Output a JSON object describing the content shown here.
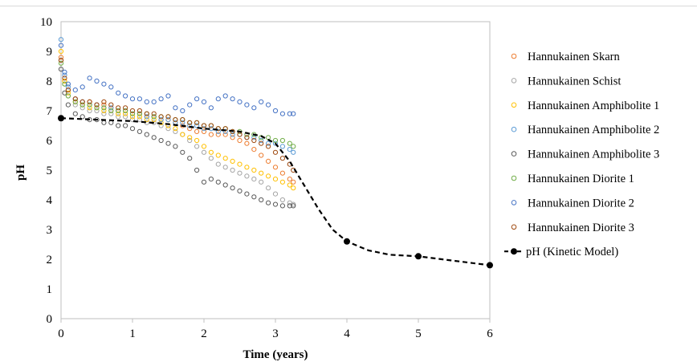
{
  "chart_data": {
    "type": "scatter",
    "title": "",
    "xlabel": "Time (years)",
    "ylabel": "pH",
    "xlim": [
      0,
      6
    ],
    "ylim": [
      0,
      10
    ],
    "x_ticks": [
      "0",
      "1",
      "2",
      "3",
      "4",
      "5",
      "6"
    ],
    "y_ticks": [
      "0",
      "1",
      "2",
      "3",
      "4",
      "5",
      "6",
      "7",
      "8",
      "9",
      "10"
    ],
    "grid": false,
    "legend_position": "right",
    "series": [
      {
        "name": "Hannukainen Skarn",
        "color": "#ed7d31",
        "marker": "open-circle",
        "x": [
          0,
          0.05,
          0.1,
          0.2,
          0.3,
          0.4,
          0.5,
          0.6,
          0.7,
          0.8,
          0.9,
          1.0,
          1.1,
          1.2,
          1.3,
          1.4,
          1.5,
          1.6,
          1.7,
          1.8,
          1.9,
          2.0,
          2.1,
          2.2,
          2.3,
          2.4,
          2.5,
          2.6,
          2.7,
          2.8,
          2.9,
          3.0,
          3.1,
          3.2,
          3.25
        ],
        "y": [
          8.8,
          8.0,
          7.7,
          7.4,
          7.3,
          7.3,
          7.2,
          7.2,
          7.1,
          7.0,
          7.0,
          6.9,
          6.9,
          6.8,
          6.8,
          6.7,
          6.7,
          6.6,
          6.5,
          6.4,
          6.3,
          6.3,
          6.2,
          6.2,
          6.2,
          6.1,
          6.0,
          5.9,
          5.7,
          5.5,
          5.3,
          5.1,
          4.9,
          4.7,
          4.6
        ]
      },
      {
        "name": "Hannukainen Schist",
        "color": "#a5a5a5",
        "marker": "open-circle",
        "x": [
          0,
          0.05,
          0.1,
          0.2,
          0.3,
          0.4,
          0.5,
          0.6,
          0.7,
          0.8,
          0.9,
          1.0,
          1.1,
          1.2,
          1.3,
          1.4,
          1.5,
          1.6,
          1.7,
          1.8,
          1.9,
          2.0,
          2.1,
          2.2,
          2.3,
          2.4,
          2.5,
          2.6,
          2.7,
          2.8,
          2.9,
          3.0,
          3.1,
          3.2,
          3.25
        ],
        "y": [
          8.7,
          7.9,
          7.5,
          7.2,
          7.1,
          7.0,
          7.0,
          6.9,
          6.9,
          6.8,
          6.8,
          6.7,
          6.7,
          6.6,
          6.6,
          6.5,
          6.4,
          6.3,
          6.2,
          6.0,
          5.8,
          5.6,
          5.4,
          5.2,
          5.1,
          5.0,
          4.9,
          4.8,
          4.7,
          4.6,
          4.4,
          4.2,
          4.0,
          3.9,
          3.85
        ]
      },
      {
        "name": "Hannukainen Amphibolite 1",
        "color": "#ffc000",
        "marker": "open-circle",
        "x": [
          0,
          0.05,
          0.1,
          0.2,
          0.3,
          0.4,
          0.5,
          0.6,
          0.7,
          0.8,
          0.9,
          1.0,
          1.1,
          1.2,
          1.3,
          1.4,
          1.5,
          1.6,
          1.7,
          1.8,
          1.9,
          2.0,
          2.1,
          2.2,
          2.3,
          2.4,
          2.5,
          2.6,
          2.7,
          2.8,
          2.9,
          3.0,
          3.1,
          3.2,
          3.25
        ],
        "y": [
          9.0,
          8.0,
          7.6,
          7.3,
          7.2,
          7.1,
          7.1,
          7.0,
          7.0,
          6.9,
          6.9,
          6.8,
          6.8,
          6.7,
          6.7,
          6.6,
          6.5,
          6.4,
          6.2,
          6.1,
          6.0,
          5.8,
          5.6,
          5.5,
          5.4,
          5.3,
          5.2,
          5.1,
          5.0,
          4.9,
          4.8,
          4.7,
          4.6,
          4.5,
          4.4
        ]
      },
      {
        "name": "Hannukainen Amphibolite 2",
        "color": "#5b9bd5",
        "marker": "open-circle",
        "x": [
          0,
          0.05,
          0.1,
          0.2,
          0.3,
          0.4,
          0.5,
          0.6,
          0.7,
          0.8,
          0.9,
          1.0,
          1.1,
          1.2,
          1.3,
          1.4,
          1.5,
          1.6,
          1.7,
          1.8,
          1.9,
          2.0,
          2.1,
          2.2,
          2.3,
          2.4,
          2.5,
          2.6,
          2.7,
          2.8,
          2.9,
          3.0,
          3.1,
          3.2,
          3.25
        ],
        "y": [
          9.4,
          8.2,
          7.8,
          7.4,
          7.3,
          7.2,
          7.2,
          7.1,
          7.1,
          7.0,
          7.0,
          6.9,
          6.9,
          6.8,
          6.8,
          6.7,
          6.7,
          6.6,
          6.6,
          6.5,
          6.5,
          6.4,
          6.4,
          6.3,
          6.3,
          6.2,
          6.2,
          6.1,
          6.1,
          6.0,
          5.9,
          5.9,
          5.8,
          5.7,
          5.6
        ]
      },
      {
        "name": "Hannukainen Amphibolite 3",
        "color": "#595959",
        "marker": "open-circle",
        "x": [
          0,
          0.05,
          0.1,
          0.2,
          0.3,
          0.4,
          0.5,
          0.6,
          0.7,
          0.8,
          0.9,
          1.0,
          1.1,
          1.2,
          1.3,
          1.4,
          1.5,
          1.6,
          1.7,
          1.8,
          1.9,
          2.0,
          2.1,
          2.2,
          2.3,
          2.4,
          2.5,
          2.6,
          2.7,
          2.8,
          2.9,
          3.0,
          3.1,
          3.2,
          3.25
        ],
        "y": [
          8.4,
          7.6,
          7.2,
          6.9,
          6.8,
          6.7,
          6.7,
          6.6,
          6.6,
          6.5,
          6.5,
          6.4,
          6.3,
          6.2,
          6.1,
          6.0,
          5.9,
          5.8,
          5.6,
          5.4,
          5.0,
          4.6,
          4.7,
          4.6,
          4.5,
          4.4,
          4.3,
          4.2,
          4.1,
          4.0,
          3.9,
          3.85,
          3.8,
          3.8,
          3.8
        ]
      },
      {
        "name": "Hannukainen Diorite 1",
        "color": "#70ad47",
        "marker": "open-circle",
        "x": [
          0,
          0.05,
          0.1,
          0.2,
          0.3,
          0.4,
          0.5,
          0.6,
          0.7,
          0.8,
          0.9,
          1.0,
          1.1,
          1.2,
          1.3,
          1.4,
          1.5,
          1.6,
          1.7,
          1.8,
          1.9,
          2.0,
          2.1,
          2.2,
          2.3,
          2.4,
          2.5,
          2.6,
          2.7,
          2.8,
          2.9,
          3.0,
          3.1,
          3.2,
          3.25
        ],
        "y": [
          8.6,
          7.9,
          7.5,
          7.3,
          7.2,
          7.2,
          7.1,
          7.1,
          7.0,
          7.0,
          7.0,
          6.9,
          6.9,
          6.9,
          6.8,
          6.8,
          6.8,
          6.7,
          6.7,
          6.6,
          6.6,
          6.5,
          6.5,
          6.4,
          6.4,
          6.3,
          6.3,
          6.2,
          6.2,
          6.1,
          6.1,
          6.0,
          6.0,
          5.9,
          5.8
        ]
      },
      {
        "name": "Hannukainen Diorite 2",
        "color": "#4472c4",
        "marker": "open-circle",
        "x": [
          0,
          0.05,
          0.1,
          0.2,
          0.3,
          0.4,
          0.5,
          0.6,
          0.7,
          0.8,
          0.9,
          1.0,
          1.1,
          1.2,
          1.3,
          1.4,
          1.5,
          1.6,
          1.7,
          1.8,
          1.9,
          2.0,
          2.1,
          2.2,
          2.3,
          2.4,
          2.5,
          2.6,
          2.7,
          2.8,
          2.9,
          3.0,
          3.1,
          3.2,
          3.25
        ],
        "y": [
          9.2,
          8.3,
          7.9,
          7.7,
          7.8,
          8.1,
          8.0,
          7.9,
          7.8,
          7.6,
          7.5,
          7.4,
          7.4,
          7.3,
          7.3,
          7.4,
          7.5,
          7.1,
          7.0,
          7.2,
          7.4,
          7.3,
          7.1,
          7.4,
          7.5,
          7.4,
          7.3,
          7.2,
          7.1,
          7.3,
          7.2,
          7.0,
          6.9,
          6.9,
          6.9
        ]
      },
      {
        "name": "Hannukainen Diorite 3",
        "color": "#9e480e",
        "marker": "open-circle",
        "x": [
          0,
          0.05,
          0.1,
          0.2,
          0.3,
          0.4,
          0.5,
          0.6,
          0.7,
          0.8,
          0.9,
          1.0,
          1.1,
          1.2,
          1.3,
          1.4,
          1.5,
          1.6,
          1.7,
          1.8,
          1.9,
          2.0,
          2.1,
          2.2,
          2.3,
          2.4,
          2.5,
          2.6,
          2.7,
          2.8,
          2.9,
          3.0,
          3.1,
          3.2,
          3.25
        ],
        "y": [
          8.7,
          8.1,
          7.7,
          7.4,
          7.3,
          7.3,
          7.2,
          7.3,
          7.2,
          7.1,
          7.1,
          7.0,
          7.0,
          6.9,
          6.9,
          6.8,
          6.8,
          6.7,
          6.7,
          6.6,
          6.6,
          6.5,
          6.5,
          6.4,
          6.4,
          6.3,
          6.2,
          6.1,
          6.0,
          5.9,
          5.8,
          5.6,
          5.4,
          5.2,
          5.0
        ]
      },
      {
        "name": "pH (Kinetic Model)",
        "color": "#000000",
        "marker": "filled-circle",
        "line": "dashed",
        "x": [
          0,
          0.5,
          1,
          1.5,
          2,
          2.5,
          2.8,
          3,
          3.2,
          3.4,
          3.6,
          3.8,
          4,
          4.3,
          4.6,
          5,
          5.5,
          6
        ],
        "y": [
          6.75,
          6.7,
          6.65,
          6.55,
          6.4,
          6.3,
          6.15,
          5.9,
          5.3,
          4.5,
          3.7,
          3.0,
          2.6,
          2.3,
          2.15,
          2.1,
          1.95,
          1.8
        ],
        "markers_x": [
          0,
          4,
          5,
          6
        ],
        "markers_y": [
          6.75,
          2.6,
          2.1,
          1.8
        ]
      }
    ]
  }
}
